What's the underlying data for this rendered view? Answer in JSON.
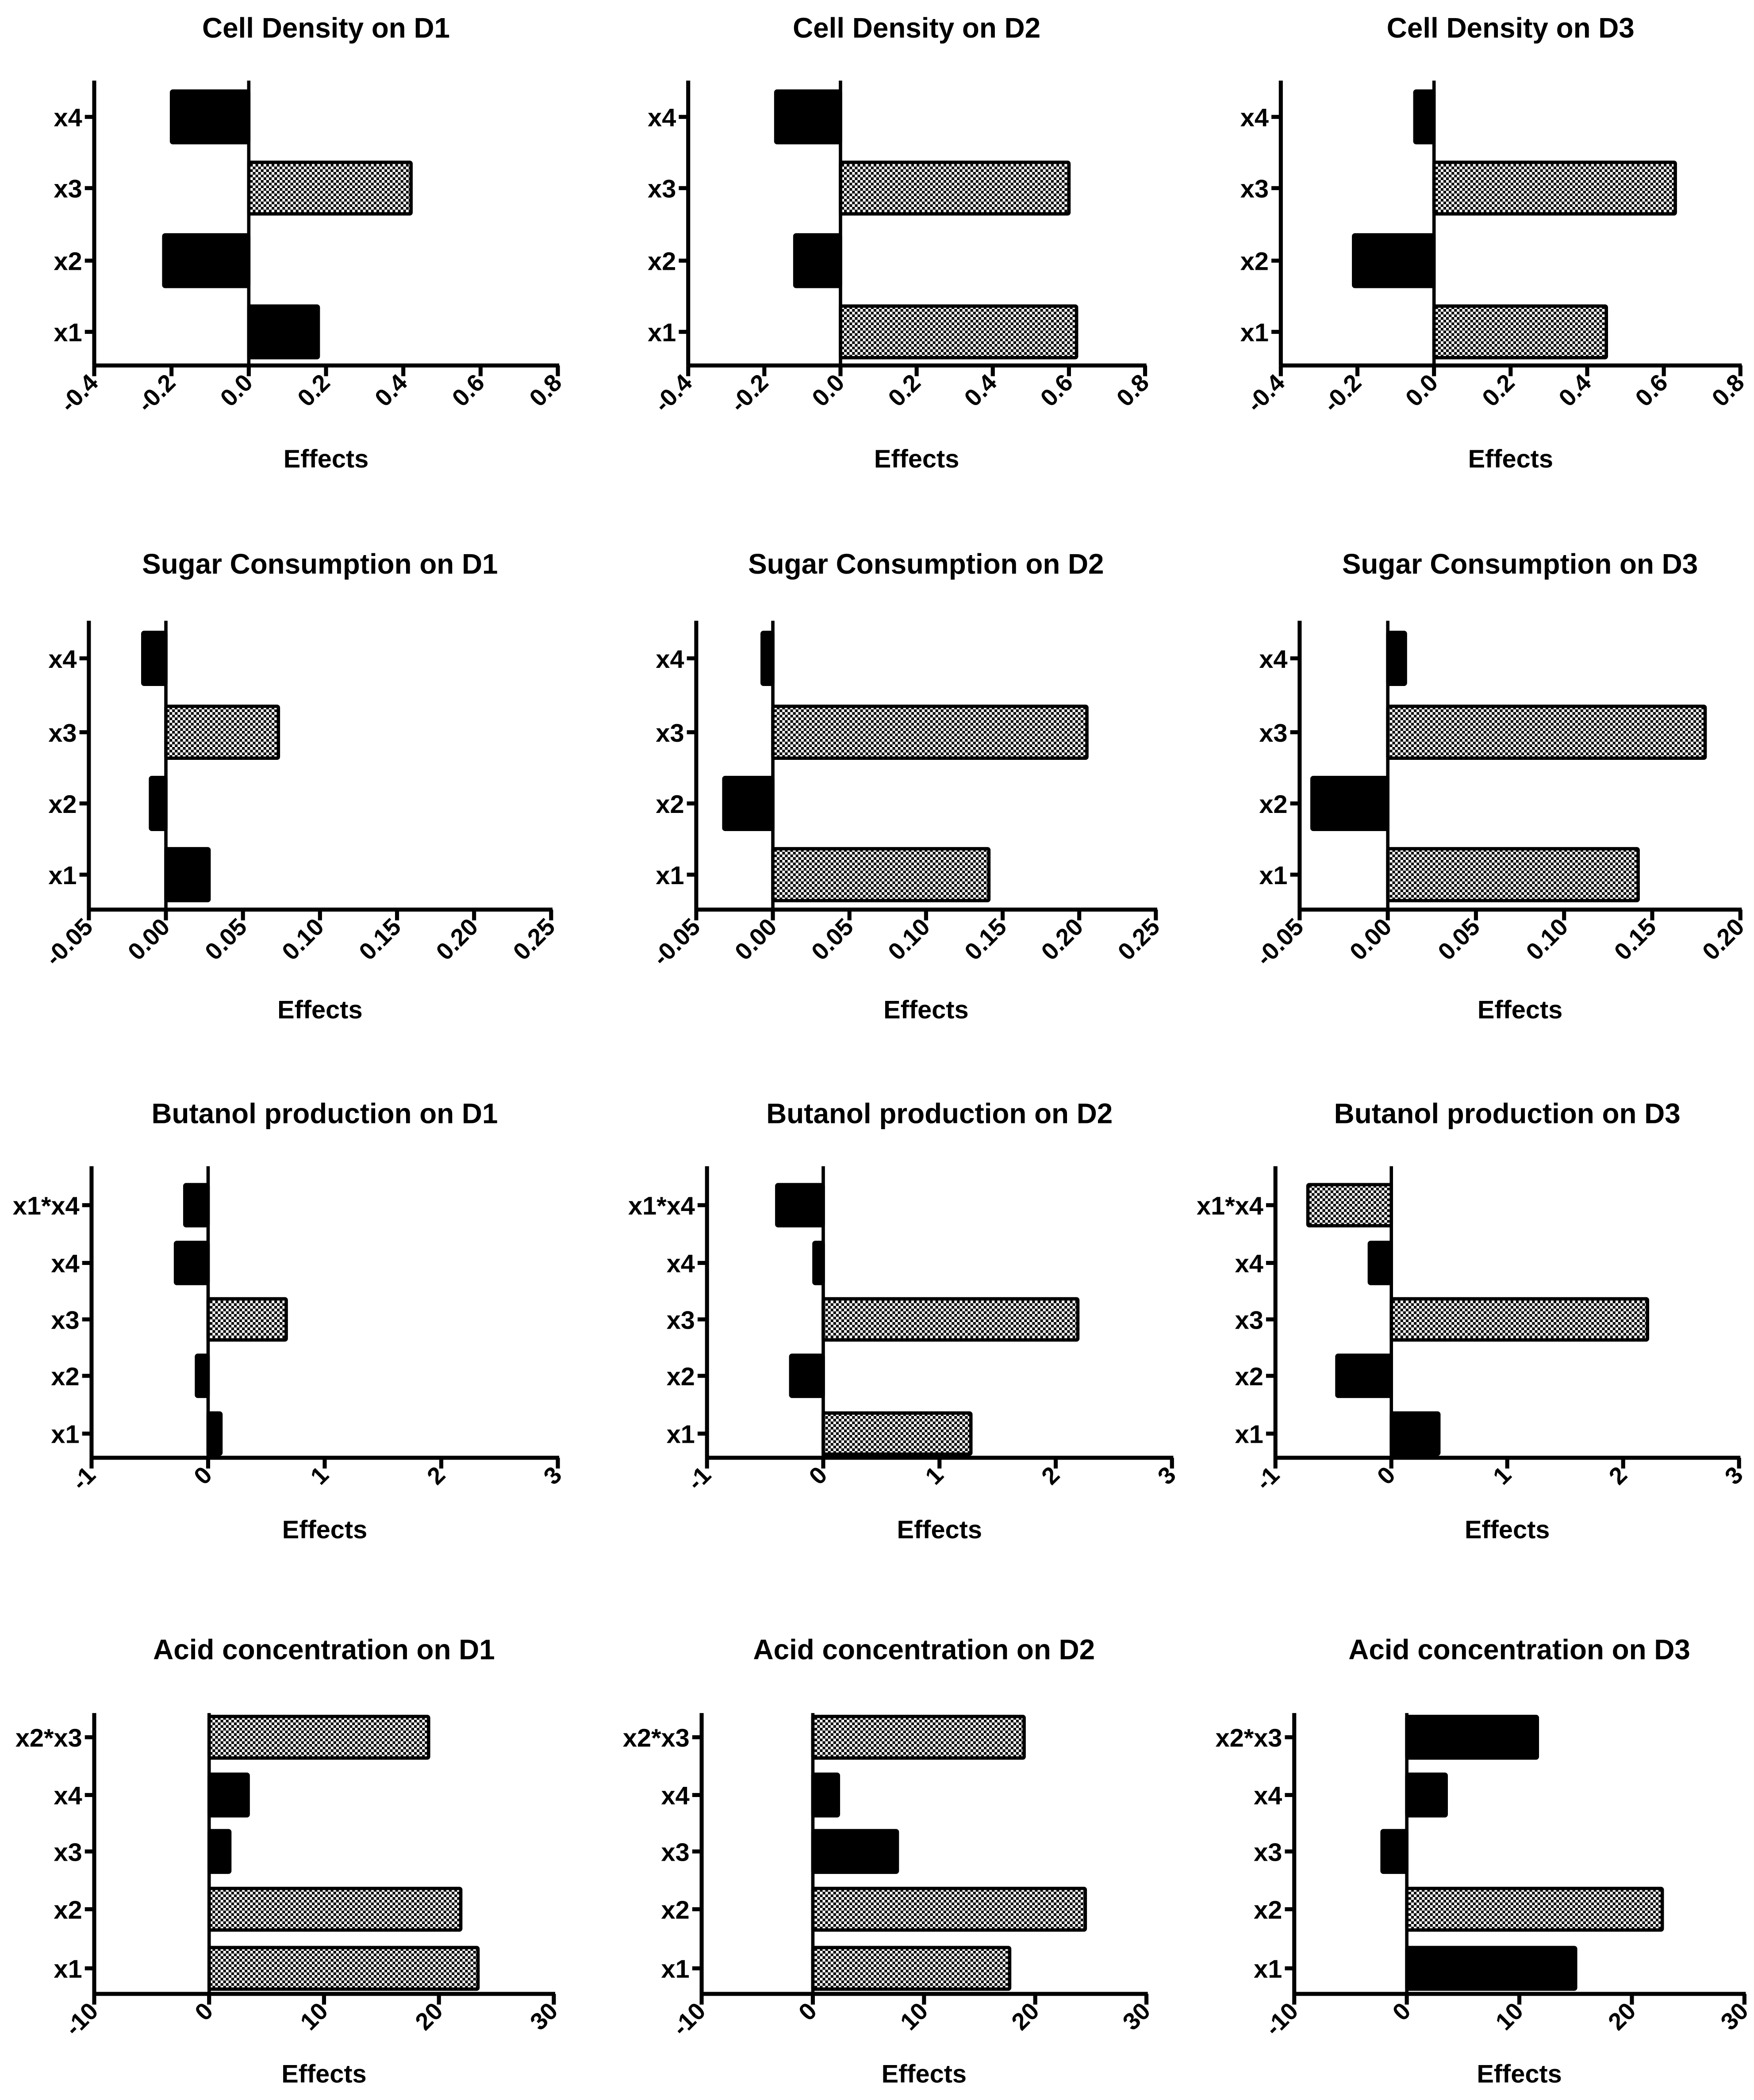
{
  "chart_data": [
    {
      "type": "bar",
      "orientation": "horizontal",
      "title": "Cell Density on D1",
      "xlabel": "Effects",
      "xlim": [
        -0.4,
        0.8
      ],
      "ticks": [
        "-0.4",
        "-0.2",
        "0.0",
        "0.2",
        "0.4",
        "0.6",
        "0.8"
      ],
      "tick_values": [
        -0.4,
        -0.2,
        0,
        0.2,
        0.4,
        0.6,
        0.8
      ],
      "categories": [
        "x4",
        "x3",
        "x2",
        "x1"
      ],
      "values": [
        -0.2,
        0.42,
        -0.22,
        0.18
      ],
      "fills": [
        "solid",
        "patterned",
        "solid",
        "solid"
      ]
    },
    {
      "type": "bar",
      "orientation": "horizontal",
      "title": "Cell Density on D2",
      "xlabel": "Effects",
      "xlim": [
        -0.4,
        0.8
      ],
      "ticks": [
        "-0.4",
        "-0.2",
        "0.0",
        "0.2",
        "0.4",
        "0.6",
        "0.8"
      ],
      "tick_values": [
        -0.4,
        -0.2,
        0,
        0.2,
        0.4,
        0.6,
        0.8
      ],
      "categories": [
        "x4",
        "x3",
        "x2",
        "x1"
      ],
      "values": [
        -0.17,
        0.6,
        -0.12,
        0.62
      ],
      "fills": [
        "solid",
        "patterned",
        "solid",
        "patterned"
      ]
    },
    {
      "type": "bar",
      "orientation": "horizontal",
      "title": "Cell Density on D3",
      "xlabel": "Effects",
      "xlim": [
        -0.4,
        0.8
      ],
      "ticks": [
        "-0.4",
        "-0.2",
        "0.0",
        "0.2",
        "0.4",
        "0.6",
        "0.8"
      ],
      "tick_values": [
        -0.4,
        -0.2,
        0,
        0.2,
        0.4,
        0.6,
        0.8
      ],
      "categories": [
        "x4",
        "x3",
        "x2",
        "x1"
      ],
      "values": [
        -0.05,
        0.63,
        -0.21,
        0.45
      ],
      "fills": [
        "solid",
        "patterned",
        "solid",
        "patterned"
      ]
    },
    {
      "type": "bar",
      "orientation": "horizontal",
      "title": "Sugar Consumption on D1",
      "xlabel": "Effects",
      "xlim": [
        -0.05,
        0.25
      ],
      "ticks": [
        "-0.05",
        "0.00",
        "0.05",
        "0.10",
        "0.15",
        "0.20",
        "0.25"
      ],
      "tick_values": [
        -0.05,
        0,
        0.05,
        0.1,
        0.15,
        0.2,
        0.25
      ],
      "categories": [
        "x4",
        "x3",
        "x2",
        "x1"
      ],
      "values": [
        -0.015,
        0.073,
        -0.01,
        0.028
      ],
      "fills": [
        "solid",
        "patterned",
        "solid",
        "solid"
      ]
    },
    {
      "type": "bar",
      "orientation": "horizontal",
      "title": "Sugar Consumption on D2",
      "xlabel": "Effects",
      "xlim": [
        -0.05,
        0.25
      ],
      "ticks": [
        "-0.05",
        "0.00",
        "0.05",
        "0.10",
        "0.15",
        "0.20",
        "0.25"
      ],
      "tick_values": [
        -0.05,
        0,
        0.05,
        0.1,
        0.15,
        0.2,
        0.25
      ],
      "categories": [
        "x4",
        "x3",
        "x2",
        "x1"
      ],
      "values": [
        -0.007,
        0.205,
        -0.032,
        0.141
      ],
      "fills": [
        "solid",
        "patterned",
        "solid",
        "patterned"
      ]
    },
    {
      "type": "bar",
      "orientation": "horizontal",
      "title": "Sugar Consumption on D3",
      "xlabel": "Effects",
      "xlim": [
        -0.05,
        0.2
      ],
      "ticks": [
        "-0.05",
        "0.00",
        "0.05",
        "0.10",
        "0.15",
        "0.20"
      ],
      "tick_values": [
        -0.05,
        0,
        0.05,
        0.1,
        0.15,
        0.2
      ],
      "categories": [
        "x4",
        "x3",
        "x2",
        "x1"
      ],
      "values": [
        0.01,
        0.18,
        -0.043,
        0.142
      ],
      "fills": [
        "solid",
        "patterned",
        "solid",
        "patterned"
      ]
    },
    {
      "type": "bar",
      "orientation": "horizontal",
      "title": "Butanol production on D1",
      "xlabel": "Effects",
      "xlim": [
        -1,
        3
      ],
      "ticks": [
        "-1",
        "0",
        "1",
        "2",
        "3"
      ],
      "tick_values": [
        -1,
        0,
        1,
        2,
        3
      ],
      "categories": [
        "x1*x4",
        "x4",
        "x3",
        "x2",
        "x1"
      ],
      "values": [
        -0.2,
        -0.28,
        0.67,
        -0.1,
        0.11
      ],
      "fills": [
        "solid",
        "solid",
        "patterned",
        "solid",
        "solid"
      ]
    },
    {
      "type": "bar",
      "orientation": "horizontal",
      "title": "Butanol production on D2",
      "xlabel": "Effects",
      "xlim": [
        -1,
        3
      ],
      "ticks": [
        "-1",
        "0",
        "1",
        "2",
        "3"
      ],
      "tick_values": [
        -1,
        0,
        1,
        2,
        3
      ],
      "categories": [
        "x1*x4",
        "x4",
        "x3",
        "x2",
        "x1"
      ],
      "values": [
        -0.4,
        -0.08,
        2.19,
        -0.28,
        1.27
      ],
      "fills": [
        "solid",
        "solid",
        "patterned",
        "solid",
        "patterned"
      ]
    },
    {
      "type": "bar",
      "orientation": "horizontal",
      "title": "Butanol production on D3",
      "xlabel": "Effects",
      "xlim": [
        -1,
        3
      ],
      "ticks": [
        "-1",
        "0",
        "1",
        "2",
        "3"
      ],
      "tick_values": [
        -1,
        0,
        1,
        2,
        3
      ],
      "categories": [
        "x1*x4",
        "x4",
        "x3",
        "x2",
        "x1"
      ],
      "values": [
        -0.72,
        -0.19,
        2.21,
        -0.47,
        0.41
      ],
      "fills": [
        "patterned",
        "solid",
        "patterned",
        "solid",
        "solid"
      ]
    },
    {
      "type": "bar",
      "orientation": "horizontal",
      "title": "Acid concentration on D1",
      "xlabel": "Effects",
      "xlim": [
        -10,
        30
      ],
      "ticks": [
        "-10",
        "0",
        "10",
        "20",
        "30"
      ],
      "tick_values": [
        -10,
        0,
        10,
        20,
        30
      ],
      "categories": [
        "x2*x3",
        "x4",
        "x3",
        "x2",
        "x1"
      ],
      "values": [
        19.1,
        3.4,
        1.8,
        21.9,
        23.4
      ],
      "fills": [
        "patterned",
        "solid",
        "solid",
        "patterned",
        "patterned"
      ]
    },
    {
      "type": "bar",
      "orientation": "horizontal",
      "title": "Acid concentration on D2",
      "xlabel": "Effects",
      "xlim": [
        -10,
        30
      ],
      "ticks": [
        "-10",
        "0",
        "10",
        "20",
        "30"
      ],
      "tick_values": [
        -10,
        0,
        10,
        20,
        30
      ],
      "categories": [
        "x2*x3",
        "x4",
        "x3",
        "x2",
        "x1"
      ],
      "values": [
        19.0,
        2.3,
        7.6,
        24.5,
        17.7
      ],
      "fills": [
        "patterned",
        "solid",
        "solid",
        "patterned",
        "patterned"
      ]
    },
    {
      "type": "bar",
      "orientation": "horizontal",
      "title": "Acid concentration on D3",
      "xlabel": "Effects",
      "xlim": [
        -10,
        30
      ],
      "ticks": [
        "-10",
        "0",
        "10",
        "20",
        "30"
      ],
      "tick_values": [
        -10,
        0,
        10,
        20,
        30
      ],
      "categories": [
        "x2*x3",
        "x4",
        "x3",
        "x2",
        "x1"
      ],
      "values": [
        11.6,
        3.5,
        -2.2,
        22.7,
        15.0
      ],
      "fills": [
        "solid",
        "solid",
        "solid",
        "patterned",
        "solid"
      ]
    }
  ]
}
